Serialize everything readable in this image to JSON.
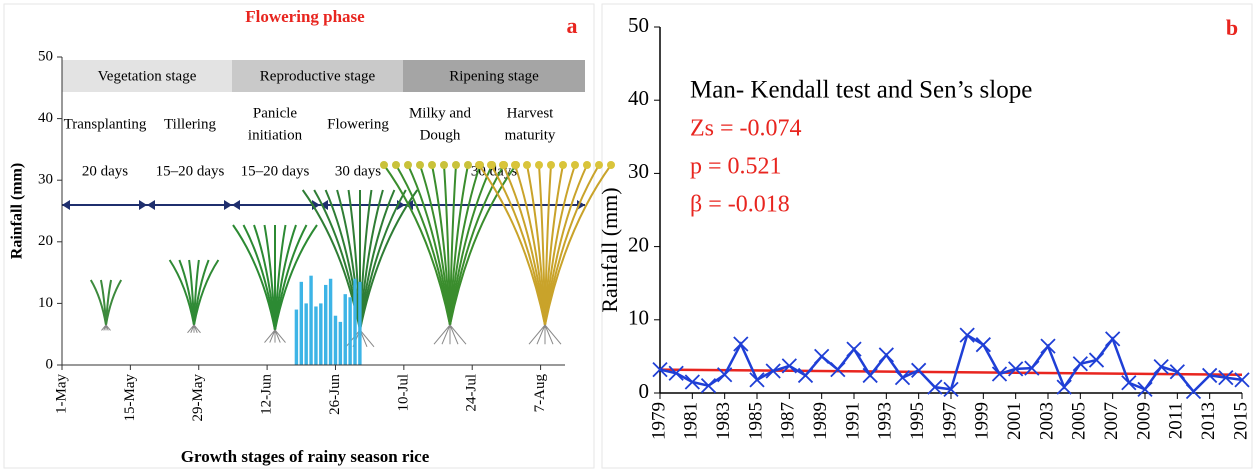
{
  "chart_data": [
    {
      "type": "bar",
      "title": "Flowering phase",
      "panel_label": "a",
      "ylabel": "Rainfall (mm)",
      "xlabel": "Growth stages of rainy season rice",
      "x": [
        "18-Jun",
        "19-Jun",
        "20-Jun",
        "21-Jun",
        "22-Jun",
        "23-Jun",
        "24-Jun",
        "25-Jun",
        "26-Jun",
        "27-Jun",
        "28-Jun",
        "29-Jun",
        "30-Jun",
        "1-Jul"
      ],
      "values": [
        9,
        13.5,
        10,
        14.5,
        9.5,
        10,
        13,
        14,
        8,
        7,
        11.5,
        11,
        14,
        13.5
      ],
      "color": "#3db4e6",
      "xlim": [
        "1-May",
        "12-Aug"
      ],
      "xticks": [
        "1-May",
        "15-May",
        "29-May",
        "12-Jun",
        "26-Jun",
        "10-Jul",
        "24-Jul",
        "7-Aug"
      ],
      "ylim": [
        0,
        50
      ],
      "yticks": [
        0,
        10,
        20,
        30,
        40,
        50
      ],
      "stages": [
        {
          "name": "Vegetation stage",
          "phases": [
            {
              "lines": [
                "Transplanting"
              ],
              "duration": "20 days"
            },
            {
              "lines": [
                "Tillering"
              ],
              "duration": "15–20 days"
            }
          ]
        },
        {
          "name": "Reproductive stage",
          "phases": [
            {
              "lines": [
                "Panicle",
                "initiation"
              ],
              "duration": "15–20 days"
            },
            {
              "lines": [
                "Flowering"
              ],
              "duration": "30 days"
            }
          ]
        },
        {
          "name": "Ripening stage",
          "duration": "30 days",
          "phases": [
            {
              "lines": [
                "Milky and",
                "Dough"
              ]
            },
            {
              "lines": [
                "Harvest",
                "maturity"
              ]
            }
          ]
        }
      ]
    },
    {
      "type": "line",
      "panel_label": "b",
      "ylabel": "Rainfall (mm)",
      "x": [
        1979,
        1980,
        1981,
        1982,
        1983,
        1984,
        1985,
        1986,
        1987,
        1988,
        1989,
        1990,
        1991,
        1992,
        1993,
        1994,
        1995,
        1996,
        1997,
        1998,
        1999,
        2000,
        2001,
        2002,
        2003,
        2004,
        2005,
        2006,
        2007,
        2008,
        2009,
        2010,
        2011,
        2012,
        2013,
        2014,
        2015
      ],
      "series": [
        {
          "color": "#1f3fd6",
          "values": [
            3.2,
            2.7,
            1.5,
            1.0,
            2.5,
            6.7,
            1.8,
            3.0,
            3.7,
            2.4,
            5.0,
            3.2,
            6.0,
            2.4,
            5.2,
            2.1,
            3.1,
            0.8,
            0.5,
            7.9,
            6.6,
            2.6,
            3.3,
            3.4,
            6.4,
            0.8,
            4.0,
            4.5,
            7.4,
            1.4,
            0.5,
            3.6,
            2.9,
            0.2,
            2.4,
            2.1,
            1.8
          ]
        }
      ],
      "trend": {
        "color": "#e8251f",
        "x": [
          1979,
          2015
        ],
        "values": [
          3.2,
          2.5
        ]
      },
      "xlim": [
        1979,
        2015
      ],
      "xticks": [
        1979,
        1981,
        1983,
        1985,
        1987,
        1989,
        1991,
        1993,
        1995,
        1997,
        1999,
        2001,
        2003,
        2005,
        2007,
        2009,
        2011,
        2013,
        2015
      ],
      "ylim": [
        0,
        50
      ],
      "yticks": [
        0,
        10,
        20,
        30,
        40,
        50
      ],
      "annotations": [
        {
          "text": "Man- Kendall test and Sen’s slope",
          "color": "#000000"
        },
        {
          "text": "Zs = -0.074",
          "color": "#e8251f"
        },
        {
          "text": "p = 0.521",
          "color": "#e8251f"
        },
        {
          "text": "β = -0.018",
          "color": "#e8251f"
        }
      ]
    }
  ]
}
